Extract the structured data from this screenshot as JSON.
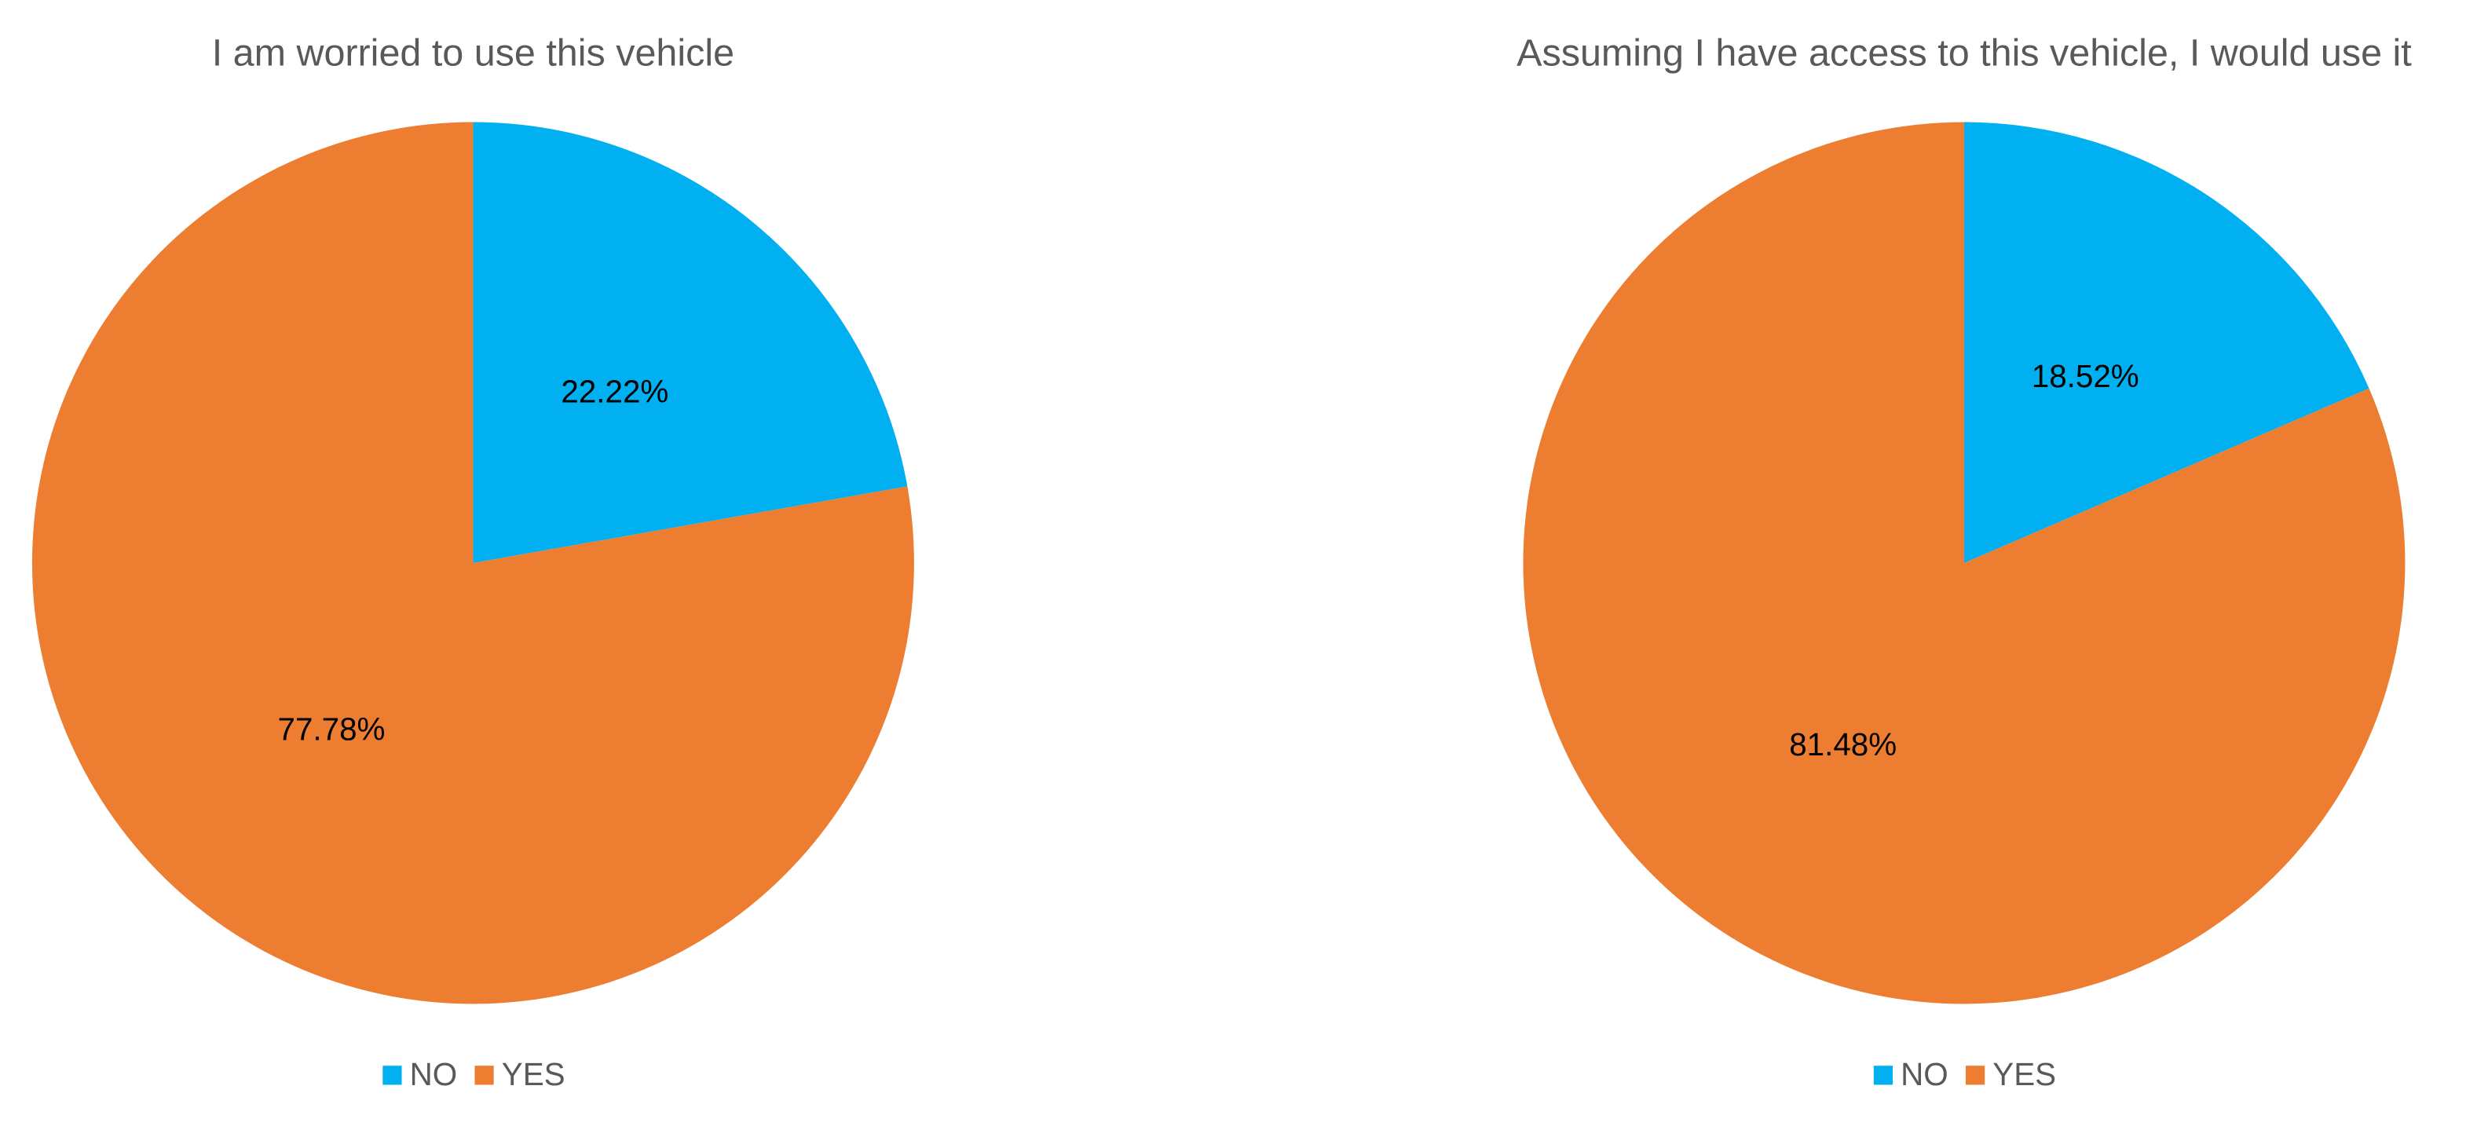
{
  "chart_data": [
    {
      "type": "pie",
      "title": "I am worried to use this vehicle",
      "categories": [
        "NO",
        "YES"
      ],
      "values": [
        22.22,
        77.78
      ],
      "value_labels": [
        "22.22%",
        "77.78%"
      ],
      "colors": [
        "#00B0F0",
        "#ED7D31"
      ],
      "legend": "bottom"
    },
    {
      "type": "pie",
      "title": "Assuming I have access to this vehicle,  I would use it",
      "categories": [
        "NO",
        "YES"
      ],
      "values": [
        18.52,
        81.48
      ],
      "value_labels": [
        "18.52%",
        "81.48%"
      ],
      "colors": [
        "#00B0F0",
        "#ED7D31"
      ],
      "legend": "bottom"
    }
  ]
}
